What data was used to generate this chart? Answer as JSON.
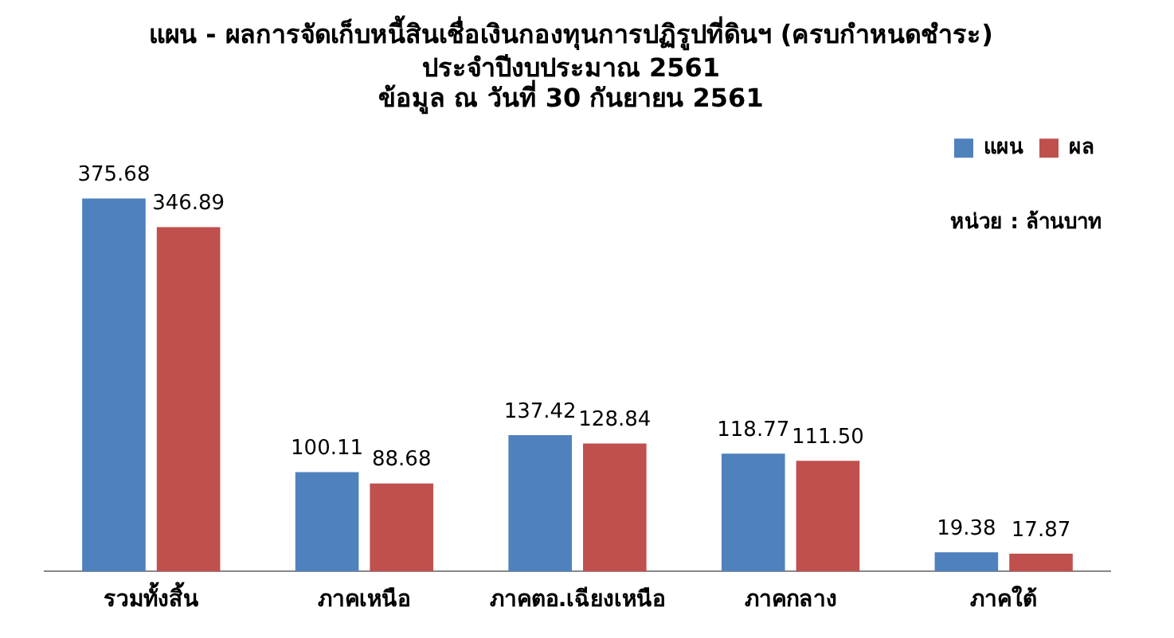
{
  "chart_data": {
    "type": "bar",
    "title": "แผน - ผลการจัดเก็บหนี้สินเชื่อเงินกองทุนการปฏิรูปที่ดินฯ (ครบกำหนดชำระ)",
    "subtitle": "ประจำปีงบประมาณ 2561\nข้อมูล ณ วันที่ 30 กันยายน 2561",
    "categories": [
      "รวมทั้งสิ้น",
      "ภาคเหนือ",
      "ภาคตอ.เฉียงเหนือ",
      "ภาคกลาง",
      "ภาคใต้"
    ],
    "series": [
      {
        "name": "แผน",
        "color": "#4f81bd",
        "values": [
          375.68,
          100.11,
          137.42,
          118.77,
          19.38
        ],
        "value_labels": [
          "375.68",
          "100.11",
          "137.42",
          "118.77",
          "19.38"
        ]
      },
      {
        "name": "ผล",
        "color": "#c0504d",
        "values": [
          346.89,
          88.68,
          128.84,
          111.5,
          17.87
        ],
        "value_labels": [
          "346.89",
          "88.68",
          "128.84",
          "111.50",
          "17.87"
        ]
      }
    ],
    "tick_labels": "x",
    "grid": false,
    "legend": "top right",
    "annotations": [
      "หน่วย : ล้านบาท"
    ]
  }
}
